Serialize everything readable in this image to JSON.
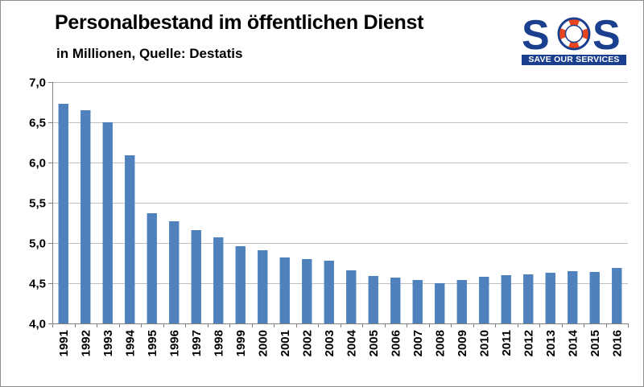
{
  "header": {
    "title": "Personalbestand im öffentlichen Dienst",
    "subtitle": "in Millionen, Quelle: Destatis"
  },
  "logo": {
    "letters": [
      "S",
      "O",
      "S"
    ],
    "tagline": "SAVE OUR SERVICES",
    "colors": {
      "navy": "#1b3f8f",
      "ring": "#e8461e",
      "white": "#ffffff"
    }
  },
  "chart_data": {
    "type": "bar",
    "title": "Personalbestand im öffentlichen Dienst",
    "subtitle": "in Millionen, Quelle: Destatis",
    "xlabel": "",
    "ylabel": "",
    "categories": [
      "1991",
      "1992",
      "1993",
      "1994",
      "1995",
      "1996",
      "1997",
      "1998",
      "1999",
      "2000",
      "2001",
      "2002",
      "2003",
      "2004",
      "2005",
      "2006",
      "2007",
      "2008",
      "2009",
      "2010",
      "2011",
      "2012",
      "2013",
      "2014",
      "2015",
      "2016"
    ],
    "values": [
      6.73,
      6.65,
      6.5,
      6.09,
      5.37,
      5.27,
      5.16,
      5.07,
      4.96,
      4.91,
      4.82,
      4.8,
      4.78,
      4.66,
      4.59,
      4.57,
      4.54,
      4.5,
      4.54,
      4.58,
      4.6,
      4.61,
      4.63,
      4.65,
      4.64,
      4.69
    ],
    "ylim": [
      4.0,
      7.0
    ],
    "yticks": [
      "4,0",
      "4,5",
      "5,0",
      "5,5",
      "6,0",
      "6,5",
      "7,0"
    ],
    "ytick_values": [
      4.0,
      4.5,
      5.0,
      5.5,
      6.0,
      6.5,
      7.0
    ],
    "grid": true,
    "legend": "none",
    "colors": {
      "bar": "#4f81bd",
      "grid": "#bfbfbf",
      "axis": "#7f7f7f"
    }
  }
}
